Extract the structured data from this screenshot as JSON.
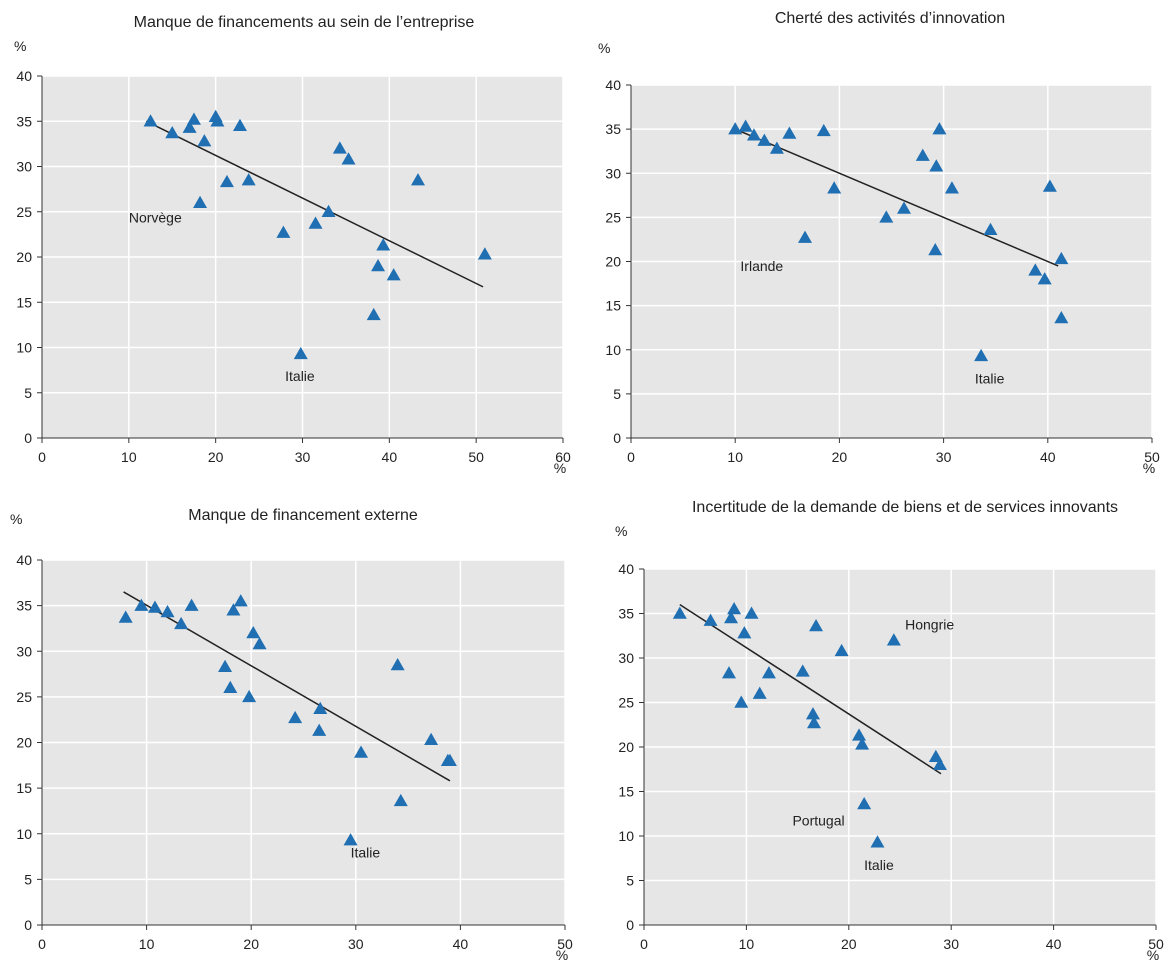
{
  "colors": {
    "plot_bg": "#e6e6e6",
    "grid": "#ffffff",
    "marker": "#1f6fb2",
    "trend": "#222222"
  },
  "chart_data": [
    {
      "type": "scatter",
      "title": "Manque de financements au sein de l’entreprise",
      "xlabel": "%",
      "ylabel": "%",
      "xlim": [
        0,
        60
      ],
      "ylim": [
        0,
        40
      ],
      "xticks": [
        "0",
        "10",
        "20",
        "30",
        "40",
        "50",
        "60"
      ],
      "yticks": [
        "0",
        "5",
        "10",
        "15",
        "20",
        "25",
        "30",
        "35",
        "40"
      ],
      "marker": "triangle",
      "points": [
        [
          12.5,
          35
        ],
        [
          15,
          33.7
        ],
        [
          17,
          34.3
        ],
        [
          17.5,
          35.2
        ],
        [
          18.2,
          26
        ],
        [
          18.7,
          32.8
        ],
        [
          20,
          35.5
        ],
        [
          20.2,
          35
        ],
        [
          21.3,
          28.3
        ],
        [
          22.8,
          34.5
        ],
        [
          23.8,
          28.5
        ],
        [
          27.8,
          22.7
        ],
        [
          31.5,
          23.7
        ],
        [
          33,
          25
        ],
        [
          34.3,
          32
        ],
        [
          35.3,
          30.8
        ],
        [
          38.2,
          13.6
        ],
        [
          38.7,
          19
        ],
        [
          39.3,
          21.3
        ],
        [
          40.5,
          18
        ],
        [
          43.3,
          28.5
        ],
        [
          51,
          20.3
        ],
        [
          29.8,
          9.3
        ]
      ],
      "trend": [
        [
          12,
          35
        ],
        [
          50.8,
          16.7
        ]
      ],
      "annotations": [
        {
          "text": "Norvège",
          "x": 10,
          "y": 23.8
        },
        {
          "text": "Italie",
          "x": 28,
          "y": 6.3
        }
      ]
    },
    {
      "type": "scatter",
      "title": "Cherté des activités d’innovation",
      "xlabel": "%",
      "ylabel": "%",
      "xlim": [
        0,
        50
      ],
      "ylim": [
        0,
        40
      ],
      "xticks": [
        "0",
        "10",
        "20",
        "30",
        "40",
        "50"
      ],
      "yticks": [
        "0",
        "5",
        "10",
        "15",
        "20",
        "25",
        "30",
        "35",
        "40"
      ],
      "marker": "triangle",
      "points": [
        [
          10,
          35
        ],
        [
          11,
          35.3
        ],
        [
          11.8,
          34.3
        ],
        [
          12.8,
          33.7
        ],
        [
          14,
          32.8
        ],
        [
          15.2,
          34.5
        ],
        [
          16.7,
          22.7
        ],
        [
          18.5,
          34.8
        ],
        [
          19.5,
          28.3
        ],
        [
          24.5,
          25
        ],
        [
          26.2,
          26
        ],
        [
          28,
          32
        ],
        [
          29.2,
          21.3
        ],
        [
          29.3,
          30.8
        ],
        [
          29.6,
          35
        ],
        [
          30.8,
          28.3
        ],
        [
          33.6,
          9.3
        ],
        [
          34.5,
          23.6
        ],
        [
          38.8,
          19
        ],
        [
          39.7,
          18
        ],
        [
          40.2,
          28.5
        ],
        [
          41.3,
          20.3
        ],
        [
          41.3,
          13.6
        ]
      ],
      "trend": [
        [
          10,
          35
        ],
        [
          41,
          19.5
        ]
      ],
      "annotations": [
        {
          "text": "Irlande",
          "x": 10.5,
          "y": 18.9
        },
        {
          "text": "Italie",
          "x": 33,
          "y": 6.2
        }
      ]
    },
    {
      "type": "scatter",
      "title": "Manque de financement externe",
      "xlabel": "%",
      "ylabel": "%",
      "xlim": [
        0,
        50
      ],
      "ylim": [
        0,
        40
      ],
      "xticks": [
        "0",
        "10",
        "20",
        "30",
        "40",
        "50"
      ],
      "yticks": [
        "0",
        "5",
        "10",
        "15",
        "20",
        "25",
        "30",
        "35",
        "40"
      ],
      "marker": "triangle",
      "points": [
        [
          8,
          33.7
        ],
        [
          9.5,
          35
        ],
        [
          10.8,
          34.8
        ],
        [
          12,
          34.3
        ],
        [
          13.3,
          33
        ],
        [
          14.3,
          35
        ],
        [
          17.5,
          28.3
        ],
        [
          18,
          26
        ],
        [
          18.3,
          34.5
        ],
        [
          19,
          35.5
        ],
        [
          19.8,
          25
        ],
        [
          20.2,
          32
        ],
        [
          20.8,
          30.8
        ],
        [
          24.2,
          22.7
        ],
        [
          26.5,
          21.3
        ],
        [
          26.6,
          23.7
        ],
        [
          29.5,
          9.3
        ],
        [
          30.5,
          18.9
        ],
        [
          34,
          28.5
        ],
        [
          34.3,
          13.6
        ],
        [
          37.2,
          20.3
        ],
        [
          38.8,
          18
        ],
        [
          39,
          18
        ]
      ],
      "trend": [
        [
          7.8,
          36.5
        ],
        [
          39,
          15.8
        ]
      ],
      "annotations": [
        {
          "text": "Italie",
          "x": 29.5,
          "y": 7.4
        }
      ]
    },
    {
      "type": "scatter",
      "title": "Incertitude de la demande de biens et de services innovants",
      "xlabel": "%",
      "ylabel": "%",
      "xlim": [
        0,
        50
      ],
      "ylim": [
        0,
        40
      ],
      "xticks": [
        "0",
        "10",
        "20",
        "30",
        "40",
        "50"
      ],
      "yticks": [
        "0",
        "5",
        "10",
        "15",
        "20",
        "25",
        "30",
        "35",
        "40"
      ],
      "marker": "triangle",
      "points": [
        [
          3.5,
          35
        ],
        [
          6.5,
          34.2
        ],
        [
          8.3,
          28.3
        ],
        [
          8.5,
          34.5
        ],
        [
          8.8,
          35.5
        ],
        [
          9.5,
          25
        ],
        [
          9.8,
          32.8
        ],
        [
          10.5,
          35
        ],
        [
          11.3,
          26
        ],
        [
          12.2,
          28.3
        ],
        [
          15.5,
          28.5
        ],
        [
          16.5,
          23.7
        ],
        [
          16.6,
          22.7
        ],
        [
          16.8,
          33.6
        ],
        [
          19.3,
          30.8
        ],
        [
          21,
          21.3
        ],
        [
          21.3,
          20.3
        ],
        [
          21.5,
          13.6
        ],
        [
          22.8,
          9.3
        ],
        [
          24.4,
          32
        ],
        [
          28.5,
          18.9
        ],
        [
          28.9,
          18
        ]
      ],
      "trend": [
        [
          3.5,
          36
        ],
        [
          29,
          17
        ]
      ],
      "annotations": [
        {
          "text": "Hongrie",
          "x": 25.5,
          "y": 33.2
        },
        {
          "text": "Portugal",
          "x": 14.5,
          "y": 11.2
        },
        {
          "text": "Italie",
          "x": 21.5,
          "y": 6.2
        }
      ]
    }
  ]
}
